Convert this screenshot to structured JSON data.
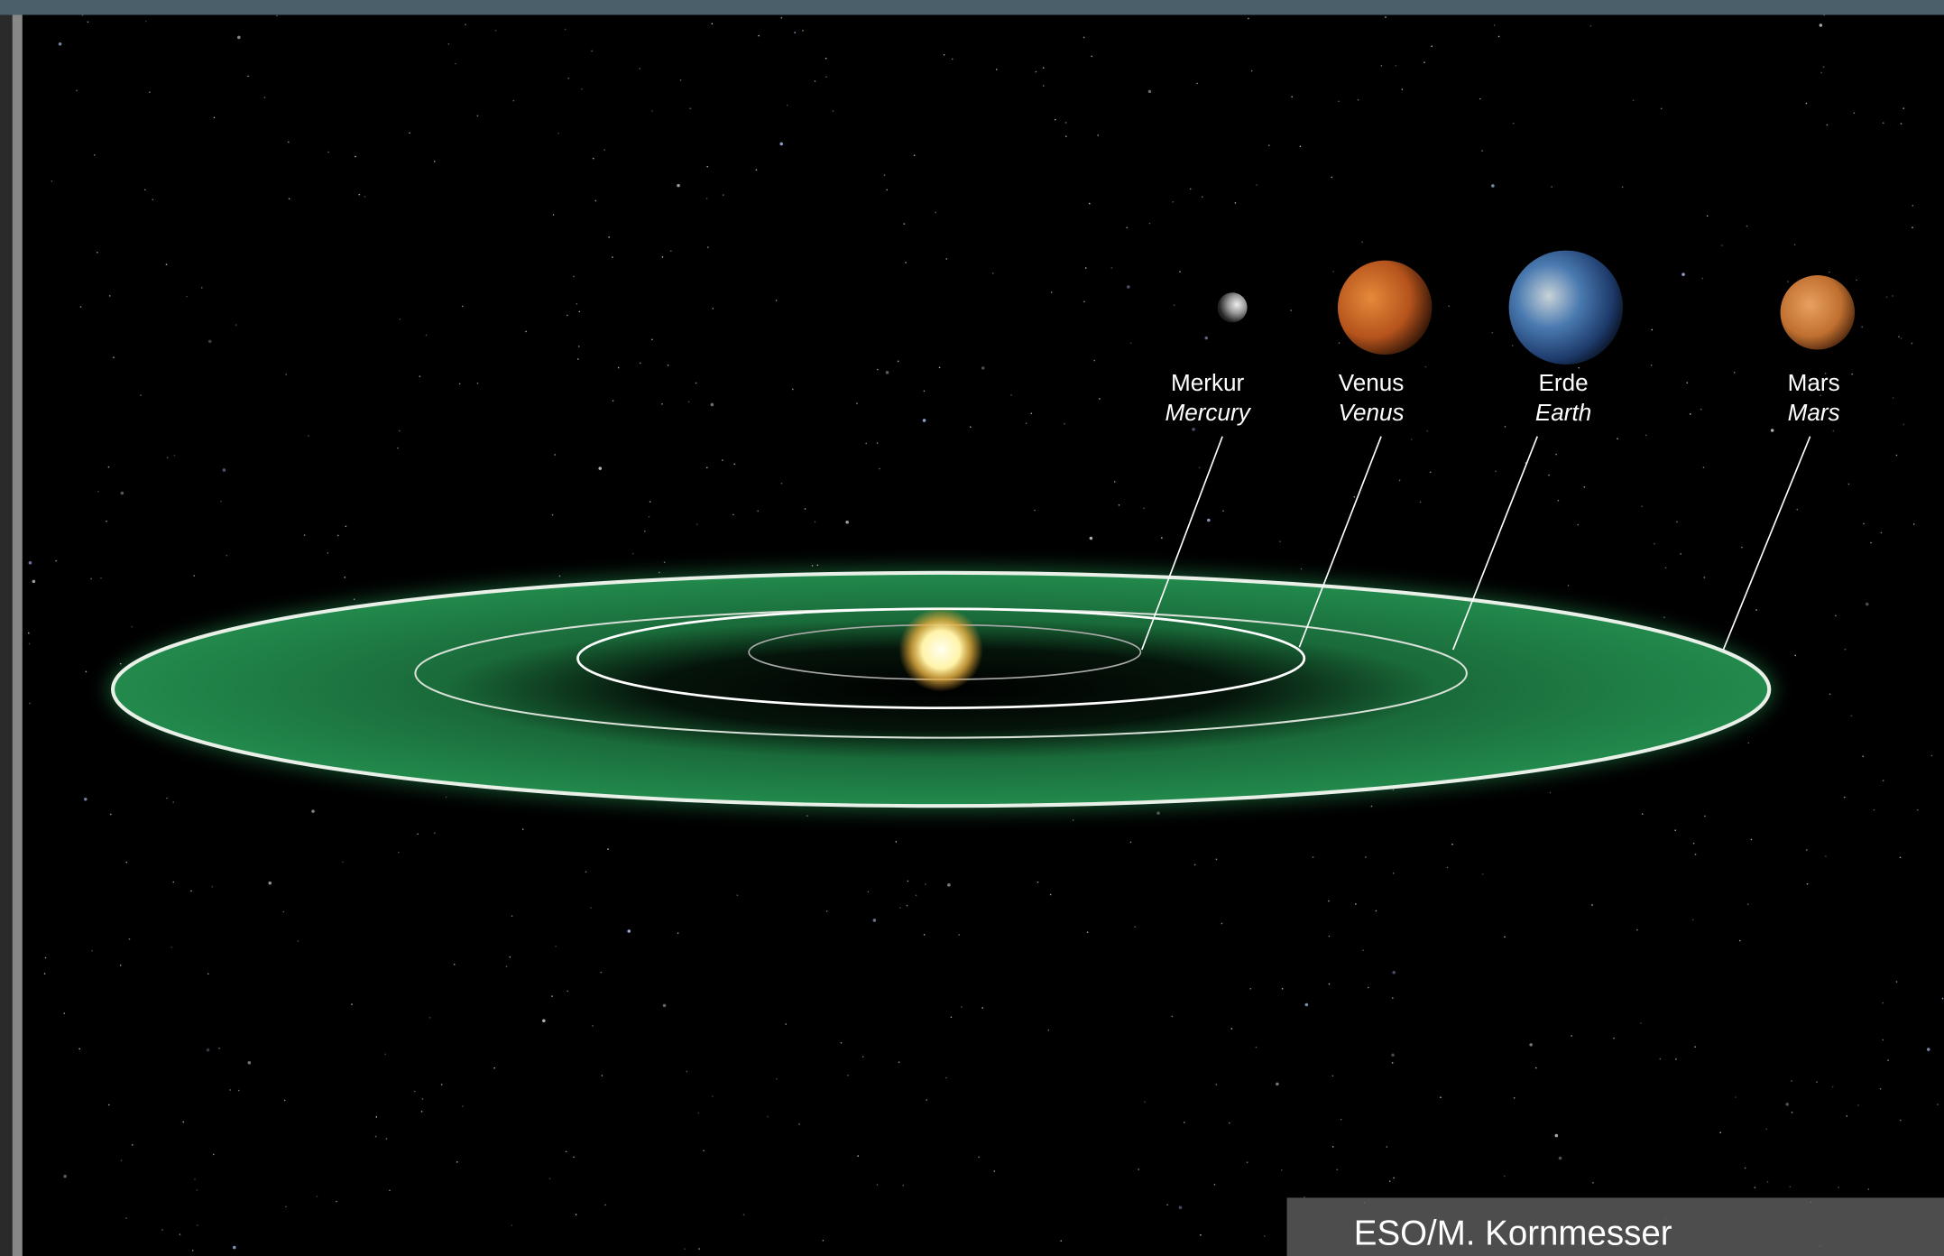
{
  "planets": [
    {
      "label_de": "Merkur",
      "label_en": "Mercury"
    },
    {
      "label_de": "Venus",
      "label_en": "Venus"
    },
    {
      "label_de": "Erde",
      "label_en": "Earth"
    },
    {
      "label_de": "Mars",
      "label_en": "Mars"
    }
  ],
  "credit": "ESO/M. Kornmesser"
}
